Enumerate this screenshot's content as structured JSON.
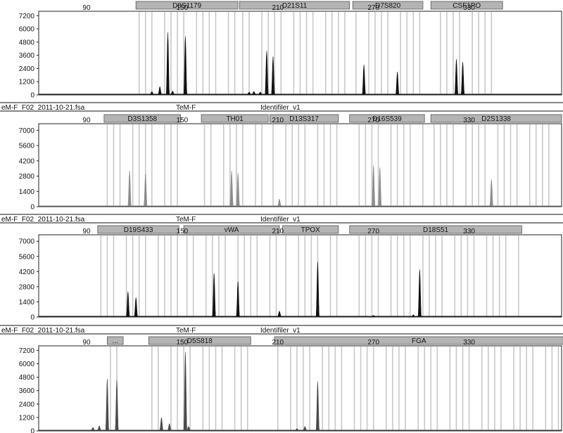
{
  "header_texts": [
    "eM-F_F02_2011-10-21.fsa",
    "TeM-F",
    "Identifiler_v1"
  ],
  "chart_data": [
    {
      "type": "line",
      "panel": 1,
      "x_ticks": [
        90,
        150,
        210,
        270,
        330
      ],
      "y_ticks": [
        0,
        1200,
        2400,
        3600,
        4800,
        6000,
        7200
      ],
      "ylim": [
        0,
        7600
      ],
      "xlim": [
        60,
        388
      ],
      "color": "#111111",
      "loci": [
        {
          "name": "D8S1179",
          "start": 121,
          "end": 185
        },
        {
          "name": "D21S11",
          "start": 186,
          "end": 255
        },
        {
          "name": "D7S820",
          "start": 257,
          "end": 301
        },
        {
          "name": "CSF1PO",
          "start": 306,
          "end": 351
        }
      ],
      "peaks": [
        {
          "x": 141,
          "h": 5700
        },
        {
          "x": 152,
          "h": 5350
        },
        {
          "x": 131,
          "h": 300
        },
        {
          "x": 136,
          "h": 750
        },
        {
          "x": 144,
          "h": 350
        },
        {
          "x": 203,
          "h": 4000
        },
        {
          "x": 207,
          "h": 3500
        },
        {
          "x": 192,
          "h": 250
        },
        {
          "x": 195,
          "h": 300
        },
        {
          "x": 199,
          "h": 250
        },
        {
          "x": 264,
          "h": 2750
        },
        {
          "x": 285,
          "h": 2100
        },
        {
          "x": 322,
          "h": 3250
        },
        {
          "x": 326,
          "h": 3000
        }
      ]
    },
    {
      "type": "line",
      "panel": 2,
      "x_ticks": [
        90,
        150,
        210,
        270,
        330
      ],
      "y_ticks": [
        0,
        1400,
        2800,
        4200,
        5600,
        7000
      ],
      "ylim": [
        0,
        7600
      ],
      "xlim": [
        60,
        388
      ],
      "color": "#8c8c8c",
      "loci": [
        {
          "name": "D3S1358",
          "start": 101,
          "end": 149
        },
        {
          "name": "TH01",
          "start": 162,
          "end": 204
        },
        {
          "name": "D13S317",
          "start": 205,
          "end": 248
        },
        {
          "name": "D16S539",
          "start": 255,
          "end": 302
        },
        {
          "name": "D2S1338",
          "start": 306,
          "end": 388
        }
      ],
      "peaks": [
        {
          "x": 117,
          "h": 3300
        },
        {
          "x": 127,
          "h": 3050
        },
        {
          "x": 181,
          "h": 3300
        },
        {
          "x": 185,
          "h": 3100
        },
        {
          "x": 211,
          "h": 700
        },
        {
          "x": 270,
          "h": 3800
        },
        {
          "x": 274,
          "h": 3600
        },
        {
          "x": 344,
          "h": 2500
        }
      ]
    },
    {
      "type": "line",
      "panel": 3,
      "x_ticks": [
        90,
        150,
        210,
        270,
        330
      ],
      "y_ticks": [
        0,
        1400,
        2800,
        4200,
        5600,
        7000
      ],
      "ylim": [
        0,
        7600
      ],
      "xlim": [
        60,
        388
      ],
      "color": "#111111",
      "loci": [
        {
          "name": "D19S433",
          "start": 97,
          "end": 148
        },
        {
          "name": "vWA",
          "start": 151,
          "end": 211
        },
        {
          "name": "TPOX",
          "start": 213,
          "end": 248
        },
        {
          "name": "D18S51",
          "start": 255,
          "end": 363
        }
      ],
      "peaks": [
        {
          "x": 116,
          "h": 2350
        },
        {
          "x": 121,
          "h": 1800
        },
        {
          "x": 170,
          "h": 4050
        },
        {
          "x": 185,
          "h": 3300
        },
        {
          "x": 211,
          "h": 550
        },
        {
          "x": 235,
          "h": 5100
        },
        {
          "x": 299,
          "h": 4400
        },
        {
          "x": 295,
          "h": 200
        },
        {
          "x": 270,
          "h": 150
        }
      ]
    },
    {
      "type": "line",
      "panel": 4,
      "x_ticks": [
        90,
        150,
        210,
        270,
        330
      ],
      "y_ticks": [
        0,
        1200,
        2400,
        3600,
        4800,
        6000,
        7200
      ],
      "ylim": [
        0,
        7600
      ],
      "xlim": [
        60,
        388
      ],
      "color": "#4a4a4a",
      "loci": [
        {
          "name": "...",
          "start": 103,
          "end": 113
        },
        {
          "name": "D5S818",
          "start": 129,
          "end": 193
        },
        {
          "name": "FGA",
          "start": 208,
          "end": 389
        }
      ],
      "peaks": [
        {
          "x": 103,
          "h": 4650
        },
        {
          "x": 109,
          "h": 4550
        },
        {
          "x": 98,
          "h": 450
        },
        {
          "x": 94,
          "h": 300
        },
        {
          "x": 137,
          "h": 1200
        },
        {
          "x": 142,
          "h": 650
        },
        {
          "x": 152,
          "h": 7100
        },
        {
          "x": 154,
          "h": 400
        },
        {
          "x": 235,
          "h": 4450
        },
        {
          "x": 227,
          "h": 400
        },
        {
          "x": 222,
          "h": 200
        }
      ]
    }
  ]
}
